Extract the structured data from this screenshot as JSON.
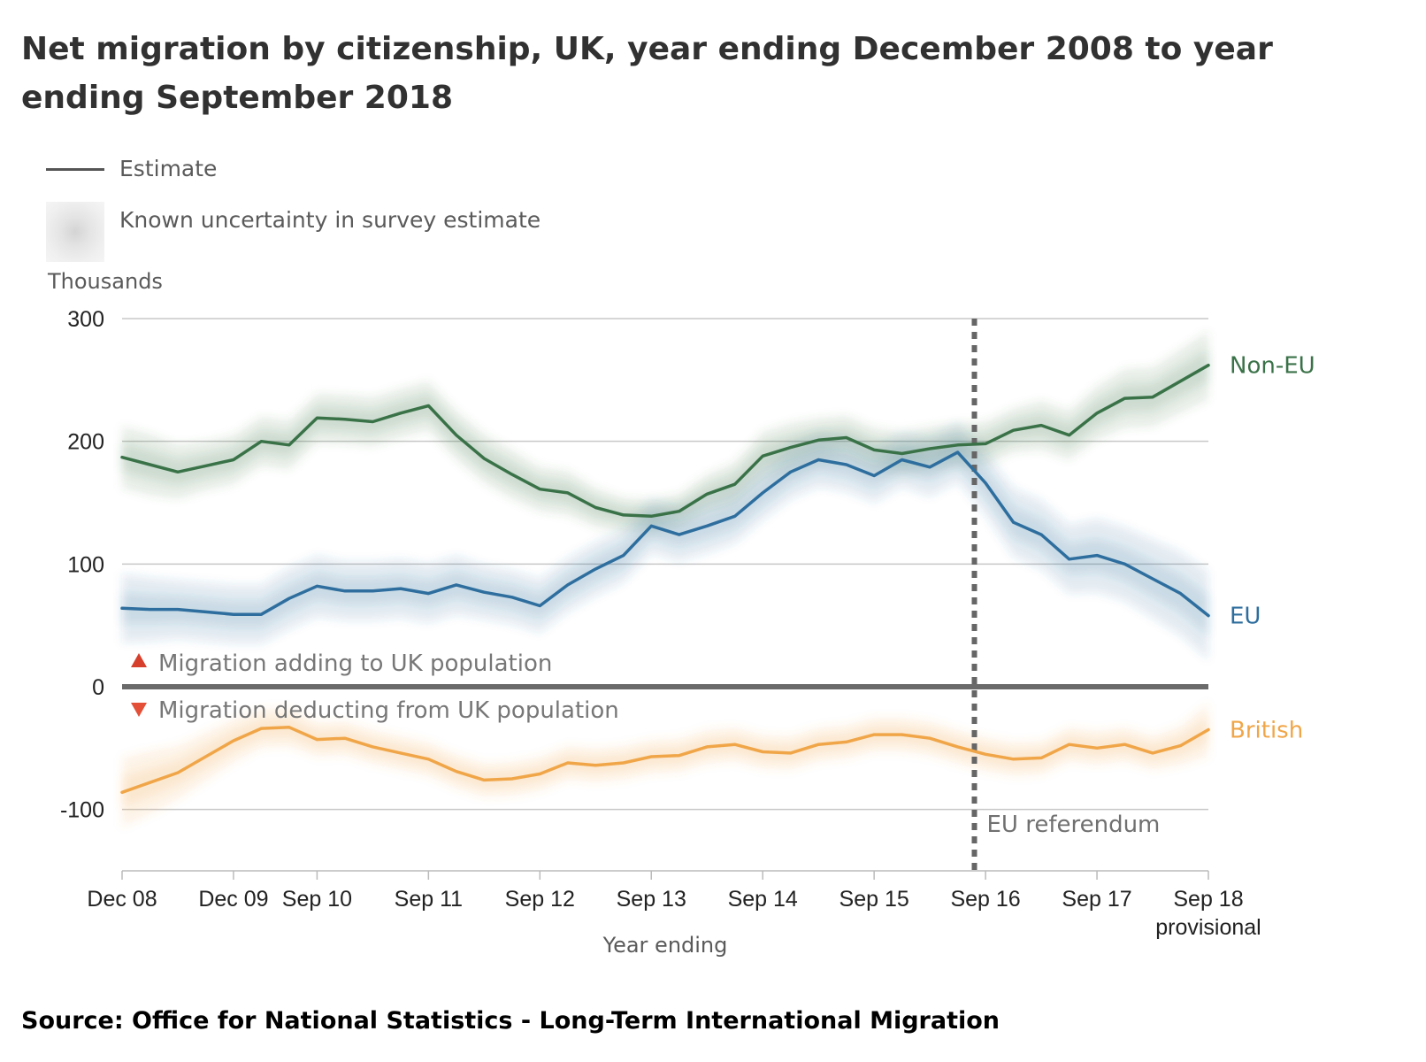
{
  "title": "Net migration by citizenship, UK, year ending December 2008 to year ending September 2018",
  "legend": {
    "estimate": "Estimate",
    "uncertainty": "Known uncertainty in survey estimate"
  },
  "source": "Source: Office for National Statistics - Long-Term International Migration",
  "chart_data": {
    "type": "line",
    "title": "Net migration by citizenship, UK, year ending December 2008 to year ending September 2018",
    "xlabel": "Year ending",
    "ylabel": "Thousands",
    "ylim": [
      -150,
      300
    ],
    "yticks": [
      300,
      200,
      100,
      0,
      -100
    ],
    "grid": true,
    "x": [
      "Dec 08",
      "Mar 09",
      "Jun 09",
      "Sep 09",
      "Dec 09",
      "Mar 10",
      "Jun 10",
      "Sep 10",
      "Dec 10",
      "Mar 11",
      "Jun 11",
      "Sep 11",
      "Dec 11",
      "Mar 12",
      "Jun 12",
      "Sep 12",
      "Dec 12",
      "Mar 13",
      "Jun 13",
      "Sep 13",
      "Dec 13",
      "Mar 14",
      "Jun 14",
      "Sep 14",
      "Dec 14",
      "Mar 15",
      "Jun 15",
      "Sep 15",
      "Dec 15",
      "Mar 16",
      "Jun 16",
      "Sep 16",
      "Dec 16",
      "Mar 17",
      "Jun 17",
      "Sep 17",
      "Dec 17",
      "Mar 18",
      "Jun 18",
      "Sep 18"
    ],
    "x_tick_labels": [
      {
        "index": 0,
        "lines": [
          "Dec 08"
        ]
      },
      {
        "index": 4,
        "lines": [
          "Dec 09"
        ]
      },
      {
        "index": 7,
        "lines": [
          "Sep 10"
        ]
      },
      {
        "index": 11,
        "lines": [
          "Sep 11"
        ]
      },
      {
        "index": 15,
        "lines": [
          "Sep 12"
        ]
      },
      {
        "index": 19,
        "lines": [
          "Sep 13"
        ]
      },
      {
        "index": 23,
        "lines": [
          "Sep 14"
        ]
      },
      {
        "index": 27,
        "lines": [
          "Sep 15"
        ]
      },
      {
        "index": 31,
        "lines": [
          "Sep 16"
        ]
      },
      {
        "index": 35,
        "lines": [
          "Sep 17"
        ]
      },
      {
        "index": 39,
        "lines": [
          "Sep 18",
          "provisional"
        ]
      }
    ],
    "series": [
      {
        "name": "Non-EU",
        "color": "#3a7248",
        "values": [
          187,
          181,
          175,
          180,
          185,
          200,
          197,
          219,
          218,
          216,
          223,
          229,
          205,
          186,
          173,
          161,
          158,
          146,
          140,
          139,
          143,
          157,
          165,
          188,
          195,
          201,
          203,
          193,
          190,
          194,
          197,
          198,
          209,
          213,
          205,
          223,
          235,
          236,
          249,
          262
        ],
        "uncertainty": [
          25,
          25,
          22,
          20,
          20,
          20,
          20,
          20,
          20,
          20,
          20,
          20,
          20,
          20,
          20,
          18,
          18,
          16,
          14,
          14,
          14,
          16,
          18,
          20,
          20,
          18,
          18,
          18,
          18,
          18,
          18,
          18,
          18,
          20,
          20,
          22,
          24,
          24,
          26,
          28
        ]
      },
      {
        "name": "EU",
        "color": "#2e6e9e",
        "values": [
          64,
          63,
          63,
          61,
          59,
          59,
          72,
          82,
          78,
          78,
          80,
          76,
          83,
          77,
          73,
          66,
          83,
          96,
          107,
          131,
          124,
          131,
          139,
          158,
          175,
          185,
          181,
          172,
          185,
          179,
          191,
          166,
          134,
          124,
          104,
          107,
          100,
          88,
          76,
          58
        ],
        "uncertainty": [
          28,
          26,
          24,
          24,
          24,
          24,
          25,
          25,
          24,
          24,
          24,
          24,
          24,
          22,
          22,
          22,
          22,
          22,
          22,
          22,
          22,
          22,
          22,
          22,
          22,
          22,
          22,
          22,
          22,
          24,
          24,
          26,
          28,
          28,
          28,
          30,
          30,
          32,
          34,
          36
        ]
      },
      {
        "name": "British",
        "color": "#f0a648",
        "values": [
          -86,
          -78,
          -70,
          -57,
          -44,
          -34,
          -33,
          -43,
          -42,
          -49,
          -54,
          -59,
          -69,
          -76,
          -75,
          -71,
          -62,
          -64,
          -62,
          -57,
          -56,
          -49,
          -47,
          -53,
          -54,
          -47,
          -45,
          -39,
          -39,
          -42,
          -49,
          -55,
          -59,
          -58,
          -47,
          -50,
          -47,
          -54,
          -48,
          -35
        ],
        "uncertainty": [
          28,
          26,
          22,
          20,
          18,
          16,
          16,
          14,
          14,
          14,
          14,
          14,
          14,
          14,
          14,
          14,
          14,
          14,
          14,
          14,
          14,
          14,
          14,
          14,
          14,
          14,
          14,
          14,
          14,
          14,
          14,
          14,
          14,
          14,
          14,
          14,
          14,
          14,
          16,
          22
        ]
      }
    ],
    "annotations": {
      "referendum_index": 30.6,
      "referendum_label": "EU referendum",
      "adding_label": "Migration adding to UK population",
      "deducting_label": "Migration deducting from UK population",
      "adding_color": "#d63f2b",
      "deducting_color": "#e34f37"
    },
    "colors": {
      "grid": "#c8c8c8",
      "zero_line": "#6a6a6a",
      "axis": "#bbbbbb",
      "text": "#222222",
      "muted": "#777777"
    }
  }
}
